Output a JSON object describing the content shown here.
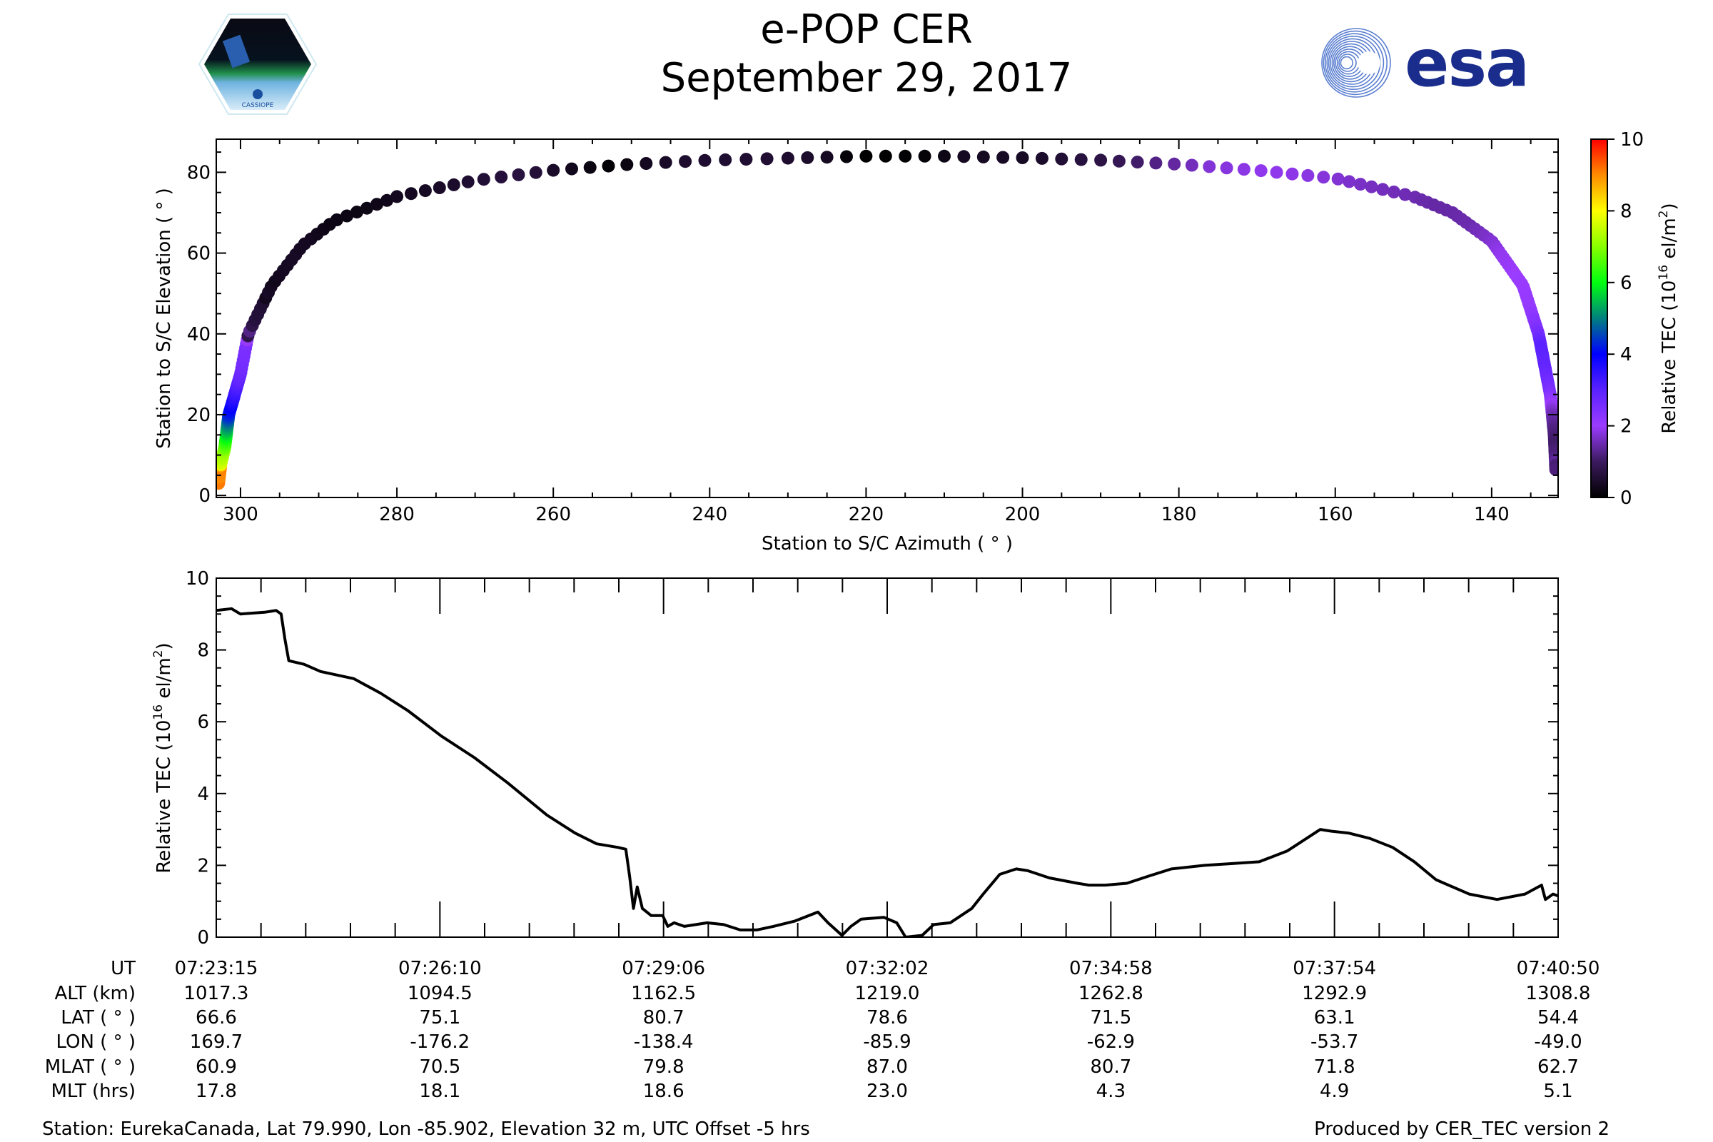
{
  "header": {
    "title": "e-POP CER",
    "date": "September 29, 2017",
    "left_logo_text": "CASSIOPE",
    "right_logo_text": "esa"
  },
  "colors": {
    "esa_blue": "#1a2d8c",
    "line": "#000000"
  },
  "chart_data": [
    {
      "type": "scatter",
      "name": "sky-track",
      "xlabel": "Station to S/C Azimuth ( ° )",
      "ylabel": "Station to S/C Elevation ( ° )",
      "xlim": [
        303.1,
        131.5
      ],
      "ylim": [
        -0.5,
        88.2
      ],
      "xticks": [
        300,
        280,
        260,
        240,
        220,
        200,
        180,
        160,
        140
      ],
      "yticks": [
        0,
        20,
        40,
        60,
        80
      ],
      "color_by": "Relative TEC",
      "track_points": [
        {
          "az": 302.8,
          "el": 3,
          "t": 0
        },
        {
          "az": 302.5,
          "el": 8,
          "t": 60
        },
        {
          "az": 302,
          "el": 12,
          "t": 130
        },
        {
          "az": 301.5,
          "el": 20,
          "t": 230
        },
        {
          "az": 300,
          "el": 30,
          "t": 290
        },
        {
          "az": 299,
          "el": 40,
          "t": 330
        },
        {
          "az": 296,
          "el": 52,
          "t": 365
        },
        {
          "az": 292,
          "el": 62,
          "t": 395
        },
        {
          "az": 288,
          "el": 68,
          "t": 415
        },
        {
          "az": 280,
          "el": 74,
          "t": 440
        },
        {
          "az": 270,
          "el": 78,
          "t": 462
        },
        {
          "az": 260,
          "el": 80.5,
          "t": 480
        },
        {
          "az": 250,
          "el": 82,
          "t": 497
        },
        {
          "az": 240,
          "el": 83,
          "t": 513
        },
        {
          "az": 230,
          "el": 83.5,
          "t": 528
        },
        {
          "az": 220,
          "el": 84,
          "t": 544
        },
        {
          "az": 210,
          "el": 84,
          "t": 560
        },
        {
          "az": 200,
          "el": 83.6,
          "t": 576
        },
        {
          "az": 190,
          "el": 83,
          "t": 592
        },
        {
          "az": 180,
          "el": 82,
          "t": 609
        },
        {
          "az": 170,
          "el": 80.5,
          "t": 627
        },
        {
          "az": 160,
          "el": 78.5,
          "t": 647
        },
        {
          "az": 150,
          "el": 74,
          "t": 675
        },
        {
          "az": 145,
          "el": 70,
          "t": 700
        },
        {
          "az": 140,
          "el": 63,
          "t": 735
        },
        {
          "az": 136,
          "el": 52,
          "t": 790
        },
        {
          "az": 134,
          "el": 40,
          "t": 850
        },
        {
          "az": 132.5,
          "el": 25,
          "t": 930
        },
        {
          "az": 132,
          "el": 15,
          "t": 990
        },
        {
          "az": 131.8,
          "el": 6,
          "t": 1055
        }
      ],
      "colorbar": {
        "label_parts": [
          "Relative TEC (10",
          "16",
          " el/m",
          "2",
          ")"
        ],
        "range": [
          0,
          10
        ],
        "ticks": [
          0,
          2,
          4,
          6,
          8,
          10
        ],
        "colormap": [
          [
            0,
            "#000000"
          ],
          [
            1,
            "#3b1a5e"
          ],
          [
            2,
            "#9b3cff"
          ],
          [
            3,
            "#5a22ff"
          ],
          [
            4,
            "#0000ff"
          ],
          [
            5,
            "#00807f"
          ],
          [
            6,
            "#00ff10"
          ],
          [
            7,
            "#88ff00"
          ],
          [
            8,
            "#ffff00"
          ],
          [
            9,
            "#ff8c00"
          ],
          [
            10,
            "#ff0000"
          ]
        ]
      }
    },
    {
      "type": "line",
      "name": "tec-timeseries",
      "ylabel_parts": [
        "Relative TEC (10",
        "16",
        " el/m",
        "2",
        ")"
      ],
      "x_unit": "seconds after 07:23:15 UT",
      "xlim": [
        0,
        1055
      ],
      "ylim": [
        0,
        10
      ],
      "yticks": [
        0,
        2,
        4,
        6,
        8,
        10
      ],
      "series": [
        {
          "name": "Relative TEC",
          "points": [
            [
              0,
              9.1
            ],
            [
              12,
              9.15
            ],
            [
              19,
              9.0
            ],
            [
              38,
              9.05
            ],
            [
              47,
              9.1
            ],
            [
              51,
              9.0
            ],
            [
              54,
              8.3
            ],
            [
              57,
              7.7
            ],
            [
              69,
              7.6
            ],
            [
              82,
              7.4
            ],
            [
              108,
              7.2
            ],
            [
              129,
              6.8
            ],
            [
              151,
              6.3
            ],
            [
              177,
              5.6
            ],
            [
              203,
              5.0
            ],
            [
              229,
              4.3
            ],
            [
              260,
              3.4
            ],
            [
              282,
              2.9
            ],
            [
              299,
              2.6
            ],
            [
              316,
              2.5
            ],
            [
              322,
              2.45
            ],
            [
              325,
              1.7
            ],
            [
              328,
              0.8
            ],
            [
              331,
              1.4
            ],
            [
              335,
              0.8
            ],
            [
              342,
              0.6
            ],
            [
              351,
              0.6
            ],
            [
              355,
              0.3
            ],
            [
              360,
              0.4
            ],
            [
              368,
              0.3
            ],
            [
              386,
              0.4
            ],
            [
              399,
              0.35
            ],
            [
              412,
              0.2
            ],
            [
              425,
              0.2
            ],
            [
              438,
              0.3
            ],
            [
              455,
              0.45
            ],
            [
              473,
              0.7
            ],
            [
              481,
              0.4
            ],
            [
              492,
              0.05
            ],
            [
              499,
              0.3
            ],
            [
              507,
              0.5
            ],
            [
              525,
              0.55
            ],
            [
              535,
              0.4
            ],
            [
              542,
              0.0
            ],
            [
              555,
              0.05
            ],
            [
              564,
              0.35
            ],
            [
              577,
              0.4
            ],
            [
              594,
              0.8
            ],
            [
              603,
              1.2
            ],
            [
              616,
              1.75
            ],
            [
              629,
              1.9
            ],
            [
              638,
              1.85
            ],
            [
              655,
              1.65
            ],
            [
              677,
              1.5
            ],
            [
              686,
              1.45
            ],
            [
              699,
              1.45
            ],
            [
              716,
              1.5
            ],
            [
              733,
              1.7
            ],
            [
              751,
              1.9
            ],
            [
              777,
              2.0
            ],
            [
              799,
              2.05
            ],
            [
              820,
              2.1
            ],
            [
              842,
              2.4
            ],
            [
              855,
              2.7
            ],
            [
              868,
              3.0
            ],
            [
              877,
              2.95
            ],
            [
              890,
              2.9
            ],
            [
              907,
              2.75
            ],
            [
              925,
              2.5
            ],
            [
              942,
              2.1
            ],
            [
              959,
              1.6
            ],
            [
              985,
              1.2
            ],
            [
              1007,
              1.05
            ],
            [
              1029,
              1.2
            ],
            [
              1042,
              1.45
            ],
            [
              1045,
              1.05
            ],
            [
              1051,
              1.2
            ],
            [
              1055,
              1.15
            ]
          ]
        }
      ]
    }
  ],
  "ephemeris_table": {
    "row_labels": [
      "UT",
      "ALT (km)",
      "LAT ( ° )",
      "LON ( ° )",
      "MLAT ( ° )",
      "MLT (hrs)"
    ],
    "columns": [
      [
        "07:23:15",
        "1017.3",
        "66.6",
        "169.7",
        "60.9",
        "17.8"
      ],
      [
        "07:26:10",
        "1094.5",
        "75.1",
        "-176.2",
        "70.5",
        "18.1"
      ],
      [
        "07:29:06",
        "1162.5",
        "80.7",
        "-138.4",
        "79.8",
        "18.6"
      ],
      [
        "07:32:02",
        "1219.0",
        "78.6",
        "-85.9",
        "87.0",
        "23.0"
      ],
      [
        "07:34:58",
        "1262.8",
        "71.5",
        "-62.9",
        "80.7",
        "4.3"
      ],
      [
        "07:37:54",
        "1292.9",
        "63.1",
        "-53.7",
        "71.8",
        "4.9"
      ],
      [
        "07:40:50",
        "1308.8",
        "54.4",
        "-49.0",
        "62.7",
        "5.1"
      ]
    ]
  },
  "footer": {
    "station": "Station: EurekaCanada, Lat 79.990, Lon -85.902, Elevation 32 m, UTC Offset -5 hrs",
    "produced_by": "Produced by CER_TEC version 2"
  }
}
